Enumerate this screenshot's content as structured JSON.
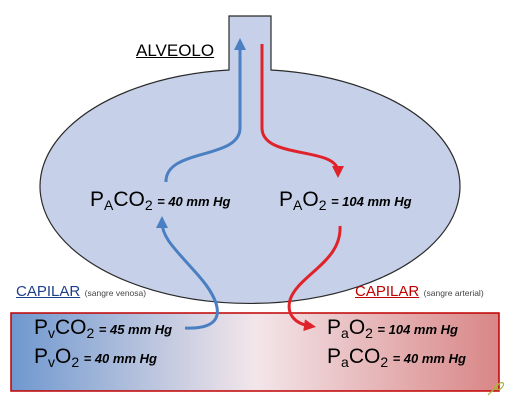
{
  "colors": {
    "venous": "#4a7fc1",
    "arterial": "#e0232a",
    "alveolus_fill": "#c6d0e8",
    "capillary_left": "#6f98cf",
    "capillary_right": "#d98686",
    "capillary_border": "#c00000",
    "outline": "#2a2a2a"
  },
  "alveolo": {
    "title": "ALVEOLO",
    "paco2": {
      "p": "P",
      "sub1": "A",
      "gas": "CO",
      "sub2": "2",
      "value": "= 40 mm Hg"
    },
    "pao2": {
      "p": "P",
      "sub1": "A",
      "gas": "O",
      "sub2": "2",
      "value": "= 104 mm Hg"
    }
  },
  "capilar_venosa": {
    "label": "CAPILAR",
    "note": "(sangre venosa)",
    "pvco2": {
      "p": "P",
      "sub1": "v",
      "gas": "CO",
      "sub2": "2",
      "value": "= 45 mm Hg"
    },
    "pvo2": {
      "p": "P",
      "sub1": "v",
      "gas": "O",
      "sub2": "2",
      "value": "= 40 mm Hg"
    }
  },
  "capilar_arterial": {
    "label": "CAPILAR",
    "note": "(sangre arterial)",
    "pao2": {
      "p": "P",
      "sub1": "a",
      "gas": "O",
      "sub2": "2",
      "value": "= 104 mm Hg"
    },
    "paco2": {
      "p": "P",
      "sub1": "a",
      "gas": "CO",
      "sub2": "2",
      "value": "= 40 mm Hg"
    }
  },
  "icons": {
    "corner_mark": "pen-logo-icon"
  }
}
